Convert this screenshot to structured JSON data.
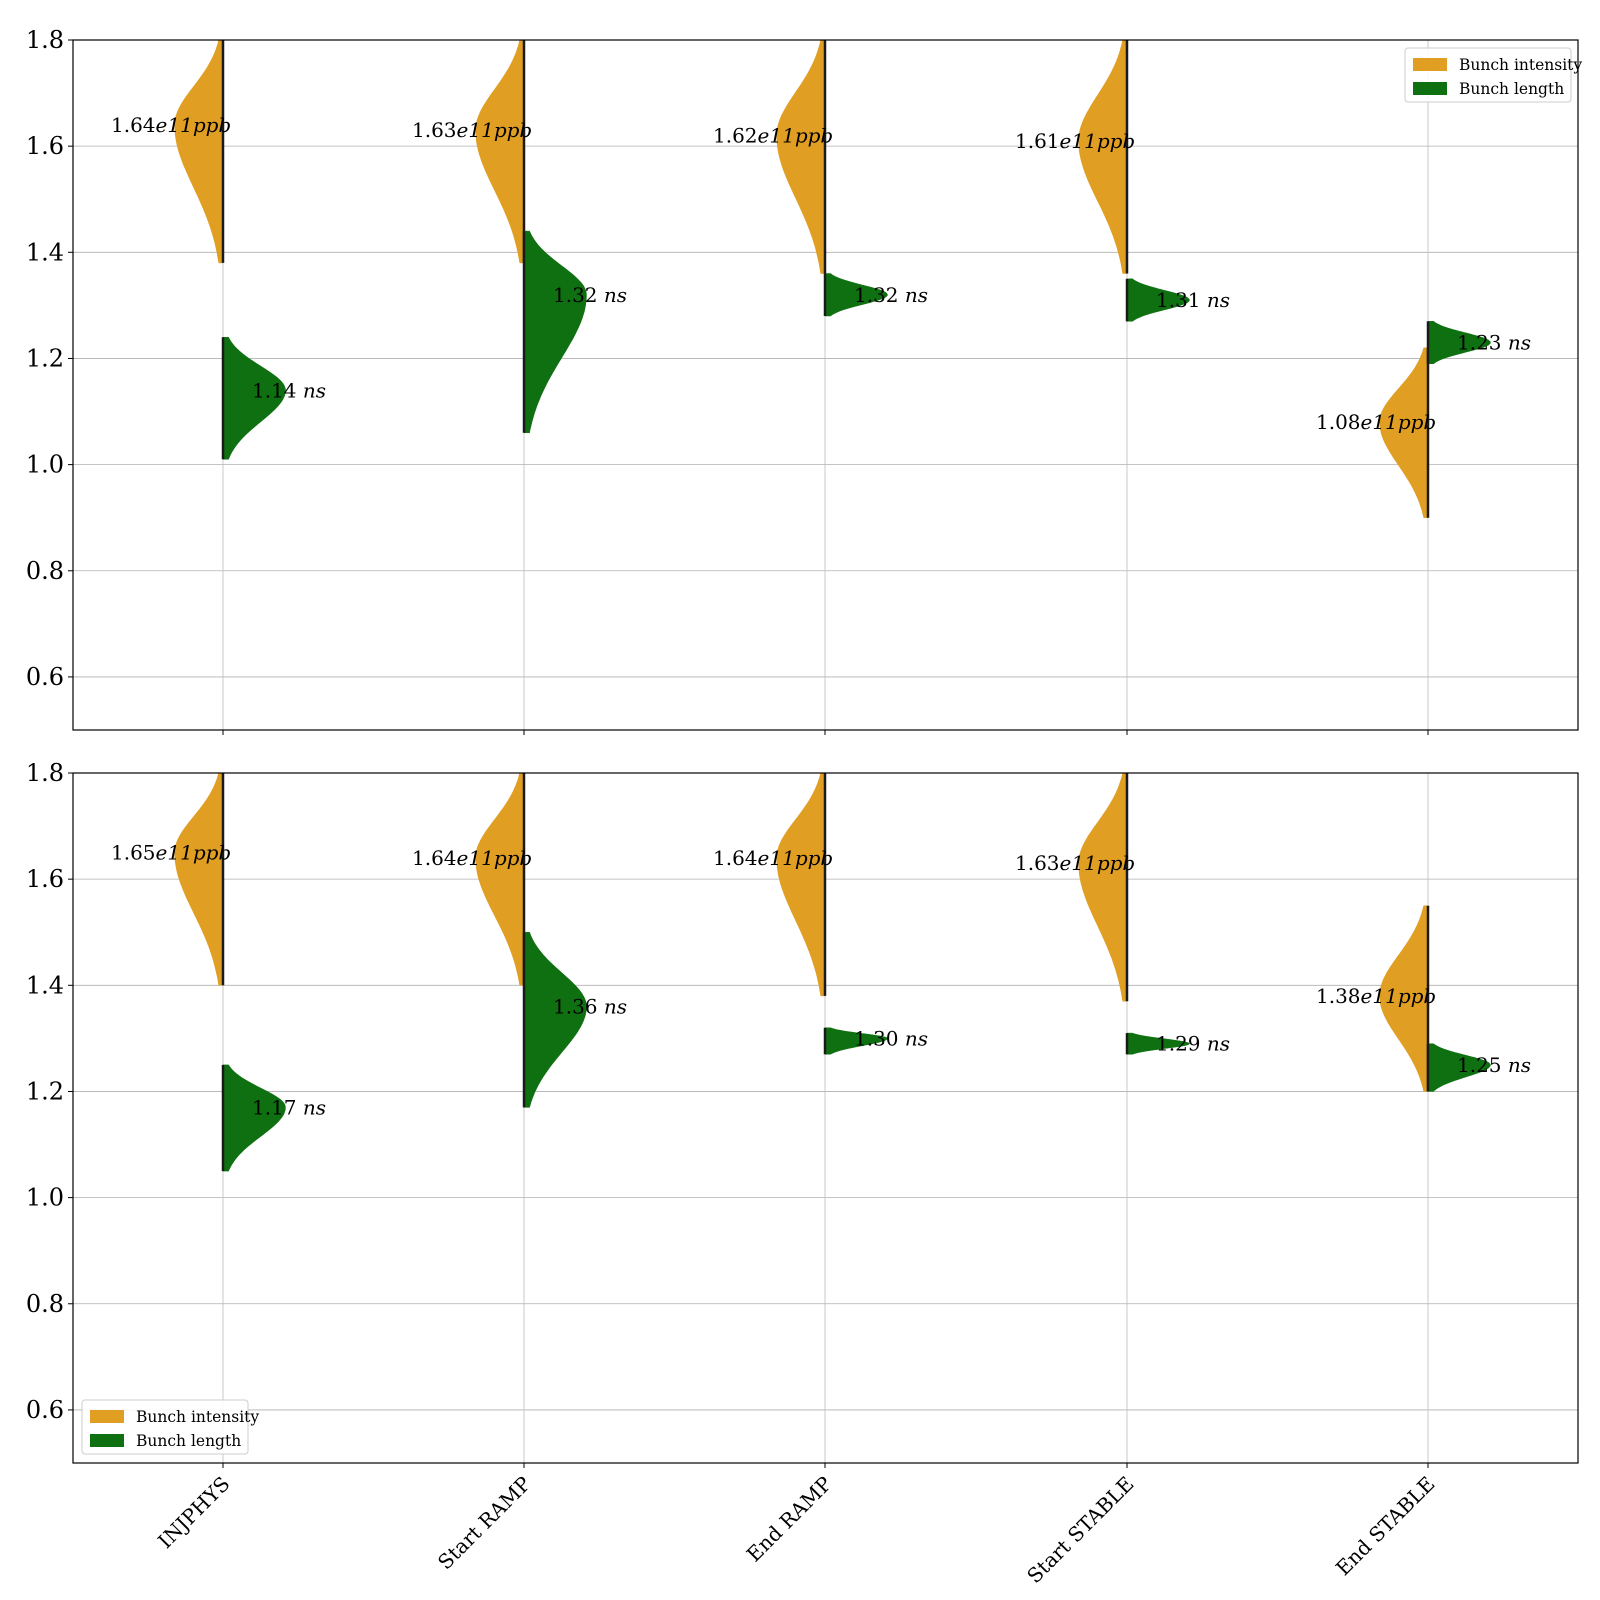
{
  "chart_data": [
    {
      "type": "violin",
      "panel": "top",
      "categories": [
        "INJPHYS",
        "Start RAMP",
        "End RAMP",
        "Start STABLE",
        "End STABLE"
      ],
      "ylim": [
        0.5,
        1.8
      ],
      "yticks": [
        0.6,
        0.8,
        1.0,
        1.2,
        1.4,
        1.6,
        1.8
      ],
      "grid": true,
      "legend_position": "top-right",
      "series": [
        {
          "name": "Bunch intensity",
          "side": "left",
          "color": "#e09e22",
          "medians": [
            1.64,
            1.63,
            1.62,
            1.61,
            1.08
          ],
          "ranges": [
            [
              1.38,
              1.8
            ],
            [
              1.38,
              1.8
            ],
            [
              1.36,
              1.8
            ],
            [
              1.36,
              1.8
            ],
            [
              0.9,
              1.22
            ]
          ],
          "labels": [
            "1.64",
            "1.63",
            "1.62",
            "1.61",
            "1.08"
          ],
          "unit": "e11ppb"
        },
        {
          "name": "Bunch length",
          "side": "right",
          "color": "#0e7010",
          "medians": [
            1.14,
            1.32,
            1.32,
            1.31,
            1.23
          ],
          "ranges": [
            [
              1.01,
              1.24
            ],
            [
              1.06,
              1.44
            ],
            [
              1.28,
              1.36
            ],
            [
              1.27,
              1.35
            ],
            [
              1.19,
              1.27
            ]
          ],
          "labels": [
            "1.14",
            "1.32",
            "1.32",
            "1.31",
            "1.23"
          ],
          "unit": "ns"
        }
      ]
    },
    {
      "type": "violin",
      "panel": "bottom",
      "categories": [
        "INJPHYS",
        "Start RAMP",
        "End RAMP",
        "Start STABLE",
        "End STABLE"
      ],
      "ylim": [
        0.5,
        1.8
      ],
      "yticks": [
        0.6,
        0.8,
        1.0,
        1.2,
        1.4,
        1.6,
        1.8
      ],
      "grid": true,
      "legend_position": "bottom-left",
      "series": [
        {
          "name": "Bunch intensity",
          "side": "left",
          "color": "#e09e22",
          "medians": [
            1.65,
            1.64,
            1.64,
            1.63,
            1.38
          ],
          "ranges": [
            [
              1.4,
              1.8
            ],
            [
              1.4,
              1.8
            ],
            [
              1.38,
              1.8
            ],
            [
              1.37,
              1.8
            ],
            [
              1.2,
              1.55
            ]
          ],
          "labels": [
            "1.65",
            "1.64",
            "1.64",
            "1.63",
            "1.38"
          ],
          "unit": "e11ppb"
        },
        {
          "name": "Bunch length",
          "side": "right",
          "color": "#0e7010",
          "medians": [
            1.17,
            1.36,
            1.3,
            1.29,
            1.25
          ],
          "ranges": [
            [
              1.05,
              1.25
            ],
            [
              1.17,
              1.5
            ],
            [
              1.27,
              1.32
            ],
            [
              1.27,
              1.31
            ],
            [
              1.2,
              1.29
            ]
          ],
          "labels": [
            "1.17",
            "1.36",
            "1.30",
            "1.29",
            "1.25"
          ],
          "unit": "ns"
        }
      ]
    }
  ]
}
